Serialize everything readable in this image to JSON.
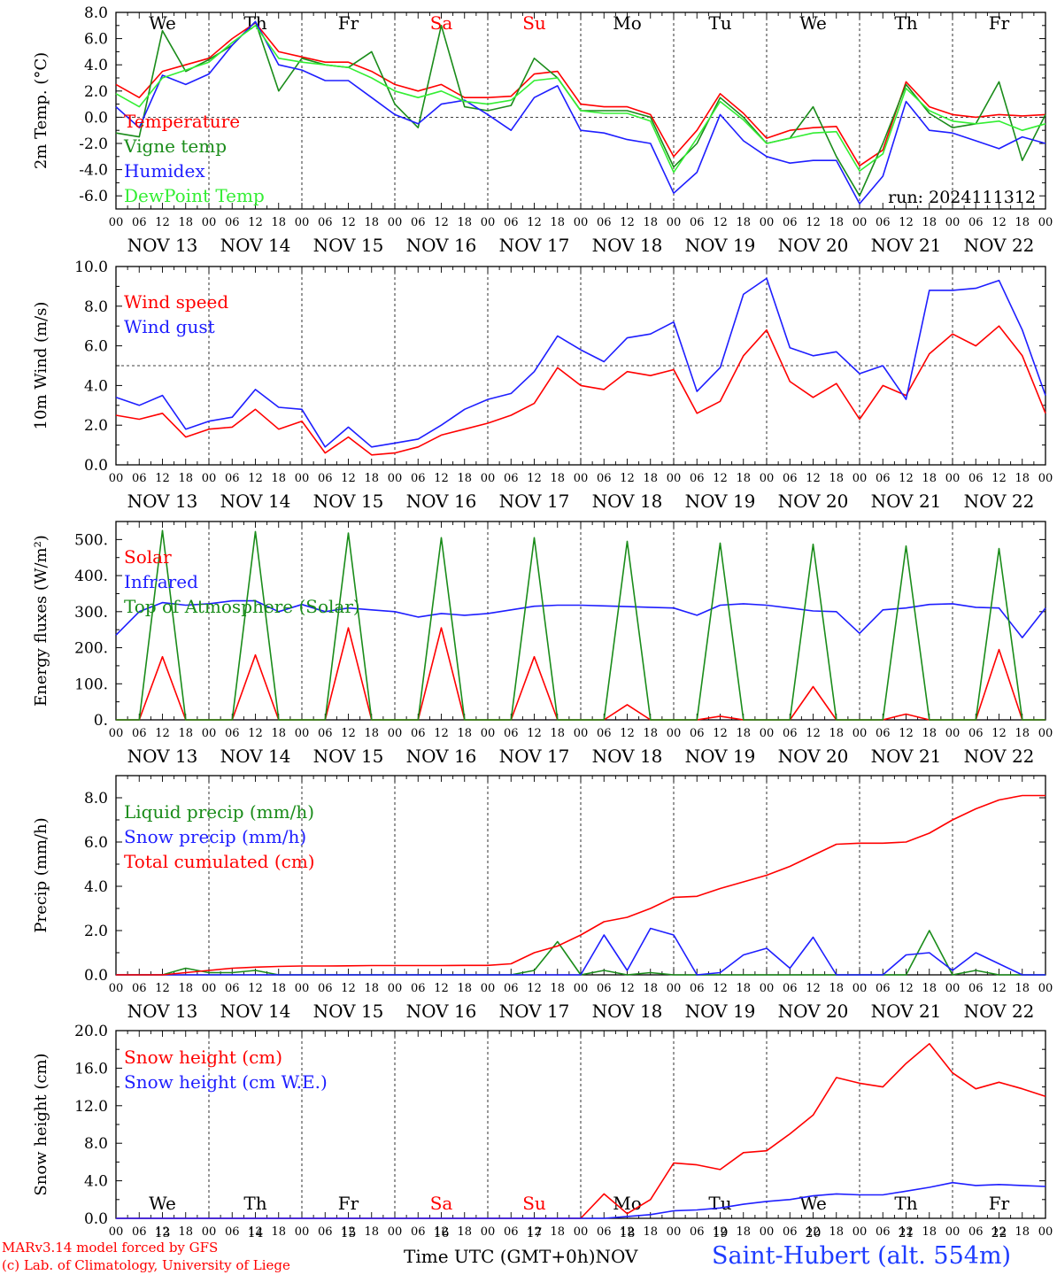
{
  "run_label": "run: 2024111312",
  "footer": {
    "credit1": "MARv3.14 model forced by GFS",
    "credit2": "(c) Lab. of Climatology, University of Liege",
    "xtitle": "Time UTC (GMT+0h)",
    "xmonth": "NOV",
    "station": "Saint-Hubert (alt. 554m)"
  },
  "colors": {
    "red": "#ff0000",
    "green": "#1a8c1a",
    "blue": "#1e1eff",
    "lightgreen": "#33ee33",
    "grey": "#555555"
  },
  "x_axis": {
    "hour_ticks": [
      "00",
      "06",
      "12",
      "18"
    ],
    "day_labels": [
      "NOV 13",
      "NOV 14",
      "NOV 15",
      "NOV 16",
      "NOV 17",
      "NOV 18",
      "NOV 19",
      "NOV 20",
      "NOV 21",
      "NOV 22"
    ],
    "weekdays": [
      {
        "label": "We",
        "color": "black"
      },
      {
        "label": "Th",
        "color": "black"
      },
      {
        "label": "Fr",
        "color": "black"
      },
      {
        "label": "Sa",
        "color": "red"
      },
      {
        "label": "Su",
        "color": "red"
      },
      {
        "label": "Mo",
        "color": "black"
      },
      {
        "label": "Tu",
        "color": "black"
      },
      {
        "label": "We",
        "color": "black"
      },
      {
        "label": "Th",
        "color": "black"
      },
      {
        "label": "Fr",
        "color": "black"
      }
    ],
    "day_numbers": [
      "13",
      "14",
      "15",
      "16",
      "17",
      "18",
      "19",
      "20",
      "21",
      "22"
    ]
  },
  "chart_data": [
    {
      "type": "line",
      "ylabel": "2m Temp. (°C)",
      "ylim": [
        -7,
        8
      ],
      "yticks": [
        "-6.0",
        "-4.0",
        "-2.0",
        "0.0",
        "2.0",
        "4.0",
        "6.0",
        "8.0"
      ],
      "ytick_values": [
        -6,
        -4,
        -2,
        0,
        2,
        4,
        6,
        8
      ],
      "ref_line": 0,
      "weekday_row": "top",
      "x": [
        0,
        6,
        12,
        18,
        24,
        30,
        36,
        42,
        48,
        54,
        60,
        66,
        72,
        78,
        84,
        90,
        96,
        102,
        108,
        114,
        120,
        126,
        132,
        138,
        144,
        150,
        156,
        162,
        168,
        174,
        180,
        186,
        192,
        198,
        204,
        210,
        216,
        222,
        228,
        234,
        240
      ],
      "series": [
        {
          "name": "Temperature",
          "color": "red",
          "values": [
            2.5,
            1.5,
            3.5,
            4.0,
            4.5,
            6.0,
            7.2,
            5.0,
            4.6,
            4.2,
            4.2,
            3.5,
            2.5,
            2.0,
            2.5,
            1.5,
            1.5,
            1.6,
            3.3,
            3.5,
            1.0,
            0.8,
            0.8,
            0.2,
            -3.0,
            -1.0,
            1.8,
            0.3,
            -1.6,
            -1.0,
            -0.8,
            -0.7,
            -3.7,
            -2.5,
            2.7,
            0.8,
            0.2,
            0.0,
            0.2,
            0.1,
            0.2
          ]
        },
        {
          "name": "Vigne temp",
          "color": "green",
          "values": [
            -1.2,
            -1.5,
            6.6,
            3.5,
            4.4,
            5.5,
            7.3,
            2.0,
            4.5,
            4.0,
            3.8,
            5.0,
            1.0,
            -0.8,
            7.0,
            0.8,
            0.5,
            0.9,
            4.5,
            3.0,
            0.5,
            0.5,
            0.5,
            0.0,
            -3.8,
            -2.0,
            1.5,
            0.0,
            -2.0,
            -1.6,
            0.8,
            -3.0,
            -6.0,
            -2.0,
            2.5,
            0.3,
            -0.8,
            -0.5,
            2.7,
            -3.3,
            0.2
          ]
        },
        {
          "name": "Humidex",
          "color": "blue",
          "values": [
            0.8,
            -0.8,
            3.2,
            2.5,
            3.3,
            5.5,
            7.3,
            4.0,
            3.6,
            2.8,
            2.8,
            1.5,
            0.2,
            -0.5,
            1.0,
            1.3,
            0.2,
            -1.0,
            1.5,
            2.4,
            -1.0,
            -1.2,
            -1.7,
            -2.0,
            -5.8,
            -4.2,
            0.2,
            -1.8,
            -3.0,
            -3.5,
            -3.3,
            -3.3,
            -6.6,
            -4.5,
            1.2,
            -1.0,
            -1.2,
            -1.8,
            -2.4,
            -1.5,
            -2.0
          ]
        },
        {
          "name": "DewPoint Temp",
          "color": "lightgreen",
          "values": [
            1.8,
            0.8,
            3.0,
            3.6,
            4.2,
            5.7,
            7.0,
            4.5,
            4.2,
            4.0,
            3.8,
            3.0,
            2.0,
            1.5,
            2.0,
            1.2,
            1.0,
            1.3,
            2.8,
            3.0,
            0.5,
            0.3,
            0.3,
            -0.3,
            -4.2,
            -1.6,
            1.2,
            -0.2,
            -2.0,
            -1.6,
            -1.2,
            -1.1,
            -4.1,
            -2.8,
            2.2,
            0.5,
            -0.3,
            -0.5,
            -0.3,
            -1.0,
            -0.5
          ]
        }
      ]
    },
    {
      "type": "line",
      "ylabel": "10m Wind (m/s)",
      "ylim": [
        0,
        10
      ],
      "yticks": [
        "0.0",
        "2.0",
        "4.0",
        "6.0",
        "8.0",
        "10.0"
      ],
      "ytick_values": [
        0,
        2,
        4,
        6,
        8,
        10
      ],
      "ref_line": 5,
      "x": [
        0,
        6,
        12,
        18,
        24,
        30,
        36,
        42,
        48,
        54,
        60,
        66,
        72,
        78,
        84,
        90,
        96,
        102,
        108,
        114,
        120,
        126,
        132,
        138,
        144,
        150,
        156,
        162,
        168,
        174,
        180,
        186,
        192,
        198,
        204,
        210,
        216,
        222,
        228,
        234,
        240
      ],
      "series": [
        {
          "name": "Wind speed",
          "color": "red",
          "values": [
            2.5,
            2.3,
            2.6,
            1.4,
            1.8,
            1.9,
            2.8,
            1.8,
            2.2,
            0.6,
            1.4,
            0.5,
            0.6,
            0.9,
            1.5,
            1.8,
            2.1,
            2.5,
            3.1,
            4.9,
            4.0,
            3.8,
            4.7,
            4.5,
            4.8,
            2.6,
            3.2,
            5.5,
            6.8,
            4.2,
            3.4,
            4.1,
            2.3,
            4.0,
            3.5,
            5.6,
            6.6,
            6.0,
            7.0,
            5.5,
            2.6
          ]
        },
        {
          "name": "Wind gust",
          "color": "blue",
          "values": [
            3.4,
            3.0,
            3.5,
            1.8,
            2.2,
            2.4,
            3.8,
            2.9,
            2.8,
            0.9,
            1.9,
            0.9,
            1.1,
            1.3,
            2.0,
            2.8,
            3.3,
            3.6,
            4.7,
            6.5,
            5.8,
            5.2,
            6.4,
            6.6,
            7.2,
            3.7,
            4.9,
            8.6,
            9.4,
            5.9,
            5.5,
            5.7,
            4.6,
            5.0,
            3.3,
            8.8,
            8.8,
            8.9,
            9.3,
            6.8,
            3.5
          ]
        }
      ]
    },
    {
      "type": "line",
      "ylabel": "Energy fluxes (W/m²)",
      "ylim": [
        0,
        550
      ],
      "yticks": [
        "0.",
        "100.",
        "200.",
        "300.",
        "400.",
        "500."
      ],
      "ytick_values": [
        0,
        100,
        200,
        300,
        400,
        500
      ],
      "x": [
        0,
        6,
        12,
        18,
        24,
        30,
        36,
        42,
        48,
        54,
        60,
        66,
        72,
        78,
        84,
        90,
        96,
        102,
        108,
        114,
        120,
        126,
        132,
        138,
        144,
        150,
        156,
        162,
        168,
        174,
        180,
        186,
        192,
        198,
        204,
        210,
        216,
        222,
        228,
        234,
        240
      ],
      "series": [
        {
          "name": "Solar",
          "color": "red",
          "values": [
            0,
            0,
            175,
            0,
            0,
            0,
            180,
            0,
            0,
            0,
            255,
            0,
            0,
            0,
            255,
            0,
            0,
            0,
            175,
            0,
            0,
            0,
            42,
            0,
            0,
            0,
            10,
            0,
            0,
            0,
            92,
            0,
            0,
            0,
            16,
            0,
            0,
            0,
            195,
            0,
            0
          ]
        },
        {
          "name": "Infrared",
          "color": "blue",
          "values": [
            235,
            300,
            325,
            318,
            322,
            330,
            330,
            300,
            320,
            300,
            310,
            305,
            300,
            285,
            295,
            290,
            295,
            305,
            315,
            318,
            318,
            316,
            314,
            312,
            310,
            290,
            318,
            322,
            318,
            310,
            302,
            300,
            240,
            305,
            310,
            320,
            322,
            312,
            310,
            228,
            310
          ]
        },
        {
          "name": "Top of Atmosphere (Solar)",
          "color": "green",
          "values": [
            0,
            0,
            525,
            0,
            0,
            0,
            522,
            0,
            0,
            0,
            518,
            0,
            0,
            0,
            505,
            0,
            0,
            0,
            505,
            0,
            0,
            0,
            495,
            0,
            0,
            0,
            490,
            0,
            0,
            0,
            487,
            0,
            0,
            0,
            482,
            0,
            0,
            0,
            475,
            0,
            0
          ]
        }
      ]
    },
    {
      "type": "line",
      "ylabel": "Precip (mm/h)",
      "ylim": [
        0,
        9
      ],
      "yticks": [
        "0.0",
        "2.0",
        "4.0",
        "6.0",
        "8.0"
      ],
      "ytick_values": [
        0,
        2,
        4,
        6,
        8
      ],
      "x": [
        0,
        6,
        12,
        18,
        24,
        30,
        36,
        42,
        48,
        54,
        60,
        66,
        72,
        78,
        84,
        90,
        96,
        102,
        108,
        114,
        120,
        126,
        132,
        138,
        144,
        150,
        156,
        162,
        168,
        174,
        180,
        186,
        192,
        198,
        204,
        210,
        216,
        222,
        228,
        234,
        240
      ],
      "series": [
        {
          "name": "Liquid precip (mm/h)",
          "color": "green",
          "values": [
            0,
            0,
            0,
            0.3,
            0.1,
            0.1,
            0.2,
            0,
            0,
            0,
            0,
            0,
            0,
            0,
            0,
            0,
            0,
            0,
            0.2,
            1.5,
            0,
            0.2,
            0,
            0.1,
            0,
            0,
            0,
            0,
            0,
            0,
            0,
            0,
            0,
            0,
            0,
            2.0,
            0,
            0.2,
            0,
            0,
            0
          ]
        },
        {
          "name": "Snow precip (mm/h)",
          "color": "blue",
          "values": [
            0,
            0,
            0,
            0,
            0,
            0,
            0,
            0,
            0,
            0,
            0,
            0,
            0,
            0,
            0,
            0,
            0,
            0,
            0,
            0,
            0,
            1.8,
            0.2,
            2.1,
            1.8,
            0,
            0.1,
            0.9,
            1.2,
            0.3,
            1.7,
            0,
            0,
            0,
            0.9,
            1.0,
            0.2,
            1.0,
            0.5,
            0,
            0
          ]
        },
        {
          "name": "Total cumulated (cm)",
          "color": "red",
          "values": [
            0,
            0,
            0,
            0.1,
            0.2,
            0.3,
            0.35,
            0.38,
            0.4,
            0.4,
            0.41,
            0.42,
            0.42,
            0.42,
            0.42,
            0.43,
            0.43,
            0.5,
            1.0,
            1.3,
            1.8,
            2.4,
            2.6,
            3.0,
            3.5,
            3.55,
            3.9,
            4.2,
            4.5,
            4.9,
            5.4,
            5.9,
            5.95,
            5.95,
            6.0,
            6.4,
            7.0,
            7.5,
            7.9,
            8.1,
            8.1
          ]
        }
      ]
    },
    {
      "type": "line",
      "ylabel": "Snow height (cm)",
      "ylim": [
        0,
        20
      ],
      "yticks": [
        "0.0",
        "4.0",
        "8.0",
        "12.0",
        "16.0",
        "20.0"
      ],
      "ytick_values": [
        0,
        4,
        8,
        12,
        16,
        20
      ],
      "weekday_row": "bottom",
      "x": [
        0,
        6,
        12,
        18,
        24,
        30,
        36,
        42,
        48,
        54,
        60,
        66,
        72,
        78,
        84,
        90,
        96,
        102,
        108,
        114,
        120,
        126,
        132,
        138,
        144,
        150,
        156,
        162,
        168,
        174,
        180,
        186,
        192,
        198,
        204,
        210,
        216,
        222,
        228,
        234,
        240
      ],
      "series": [
        {
          "name": "Snow height (cm)",
          "color": "red",
          "values": [
            0,
            0,
            0,
            0,
            0,
            0,
            0,
            0,
            0,
            0,
            0,
            0,
            0,
            0,
            0,
            0,
            0,
            0,
            0,
            0,
            0,
            2.6,
            0.5,
            2.0,
            5.9,
            5.7,
            5.2,
            7.0,
            7.2,
            9.0,
            11.0,
            15.0,
            14.4,
            14.0,
            16.5,
            18.6,
            15.5,
            13.8,
            14.5,
            13.8,
            13.0
          ]
        },
        {
          "name": "Snow height (cm W.E.)",
          "color": "blue",
          "values": [
            0,
            0,
            0,
            0,
            0,
            0,
            0,
            0,
            0,
            0,
            0,
            0,
            0,
            0,
            0,
            0,
            0,
            0,
            0,
            0,
            0,
            0,
            0.2,
            0.4,
            0.8,
            0.9,
            1.1,
            1.5,
            1.8,
            2.0,
            2.4,
            2.6,
            2.5,
            2.5,
            2.9,
            3.3,
            3.8,
            3.5,
            3.6,
            3.5,
            3.4
          ]
        }
      ]
    }
  ]
}
